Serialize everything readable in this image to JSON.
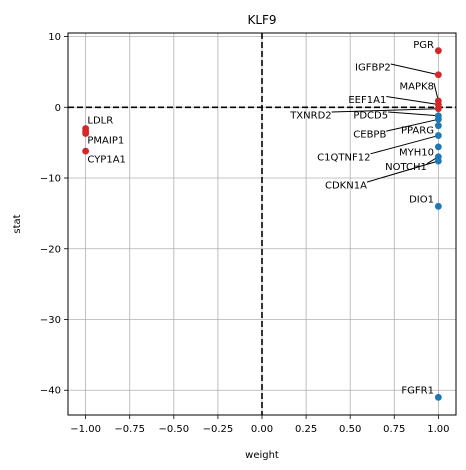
{
  "chart_data": {
    "type": "scatter",
    "title": "KLF9",
    "xlabel": "weight",
    "ylabel": "stat",
    "xlim": [
      -1.1,
      1.1
    ],
    "ylim": [
      -43.5,
      10.5
    ],
    "xticks": [
      -1.0,
      -0.75,
      -0.5,
      -0.25,
      0.0,
      0.25,
      0.5,
      0.75,
      1.0
    ],
    "xtick_labels": [
      "−1.00",
      "−0.75",
      "−0.50",
      "−0.25",
      "0.00",
      "0.25",
      "0.50",
      "0.75",
      "1.00"
    ],
    "yticks": [
      10,
      0,
      -10,
      -20,
      -30,
      -40
    ],
    "ytick_labels": [
      "10",
      "0",
      "−10",
      "−20",
      "−30",
      "−40"
    ],
    "grid": true,
    "reference_lines": {
      "x": 0,
      "y": 0,
      "style": "dashed"
    },
    "colors": {
      "positive": "#d62728",
      "negative": "#1f77b4",
      "grid": "#b0b0b0"
    },
    "points": [
      {
        "x": -1.0,
        "y": -3.0,
        "color": "positive"
      },
      {
        "x": -1.0,
        "y": -3.4,
        "color": "positive"
      },
      {
        "x": -1.0,
        "y": -3.7,
        "color": "positive"
      },
      {
        "x": -1.0,
        "y": -6.2,
        "color": "positive"
      },
      {
        "x": 1.0,
        "y": 8.0,
        "color": "positive"
      },
      {
        "x": 1.0,
        "y": 4.6,
        "color": "positive"
      },
      {
        "x": 1.0,
        "y": 0.9,
        "color": "positive"
      },
      {
        "x": 1.0,
        "y": 0.4,
        "color": "positive"
      },
      {
        "x": 1.0,
        "y": -0.2,
        "color": "positive"
      },
      {
        "x": 1.0,
        "y": -1.2,
        "color": "negative"
      },
      {
        "x": 1.0,
        "y": -1.7,
        "color": "negative"
      },
      {
        "x": 1.0,
        "y": -2.6,
        "color": "negative"
      },
      {
        "x": 1.0,
        "y": -4.0,
        "color": "negative"
      },
      {
        "x": 1.0,
        "y": -5.6,
        "color": "negative"
      },
      {
        "x": 1.0,
        "y": -7.0,
        "color": "negative"
      },
      {
        "x": 1.0,
        "y": -7.6,
        "color": "negative"
      },
      {
        "x": 1.0,
        "y": -14.0,
        "color": "negative"
      },
      {
        "x": 1.0,
        "y": -41.0,
        "color": "negative"
      }
    ],
    "labels": [
      {
        "text": "LDLR",
        "x": -1.0,
        "y": -3.0,
        "tx": -0.99,
        "ty": -1.8,
        "anchor": "start",
        "leader": false
      },
      {
        "text": "PMAIP1",
        "x": -1.0,
        "y": -3.5,
        "tx": -0.99,
        "ty": -4.6,
        "anchor": "start",
        "leader": false
      },
      {
        "text": "CYP1A1",
        "x": -1.0,
        "y": -6.2,
        "tx": -0.99,
        "ty": -7.3,
        "anchor": "start",
        "leader": false
      },
      {
        "text": "PGR",
        "x": 1.0,
        "y": 8.0,
        "tx": 0.975,
        "ty": 8.9,
        "anchor": "end",
        "leader": false
      },
      {
        "text": "IGFBP2",
        "x": 1.0,
        "y": 4.6,
        "tx": 0.73,
        "ty": 5.7,
        "anchor": "end",
        "leader": true
      },
      {
        "text": "MAPK8",
        "x": 1.0,
        "y": 0.9,
        "tx": 0.975,
        "ty": 3.0,
        "anchor": "end",
        "leader": true
      },
      {
        "text": "EEF1A1",
        "x": 1.0,
        "y": 0.4,
        "tx": 0.705,
        "ty": 1.1,
        "anchor": "end",
        "leader": true
      },
      {
        "text": "TXNRD2",
        "x": 1.0,
        "y": -0.2,
        "tx": 0.395,
        "ty": -1.1,
        "anchor": "end",
        "leader": true
      },
      {
        "text": "PDCD5",
        "x": 1.0,
        "y": -1.2,
        "tx": 0.715,
        "ty": -1.1,
        "anchor": "end",
        "leader": true
      },
      {
        "text": "PPARG",
        "x": 1.0,
        "y": -2.6,
        "tx": 0.975,
        "ty": -3.2,
        "anchor": "end",
        "leader": false
      },
      {
        "text": "CEBPB",
        "x": 1.0,
        "y": -1.7,
        "tx": 0.705,
        "ty": -3.8,
        "anchor": "end",
        "leader": true
      },
      {
        "text": "MYH10",
        "x": 1.0,
        "y": -5.6,
        "tx": 0.975,
        "ty": -6.3,
        "anchor": "end",
        "leader": false
      },
      {
        "text": "C1QTNF12",
        "x": 1.0,
        "y": -4.0,
        "tx": 0.615,
        "ty": -7.0,
        "anchor": "end",
        "leader": true
      },
      {
        "text": "NOTCH1",
        "x": 1.0,
        "y": -7.0,
        "tx": 0.935,
        "ty": -8.4,
        "anchor": "end",
        "leader": true
      },
      {
        "text": "CDKN1A",
        "x": 1.0,
        "y": -7.6,
        "tx": 0.595,
        "ty": -11.0,
        "anchor": "end",
        "leader": true
      },
      {
        "text": "DIO1",
        "x": 1.0,
        "y": -14.0,
        "tx": 0.975,
        "ty": -13.0,
        "anchor": "end",
        "leader": false
      },
      {
        "text": "FGFR1",
        "x": 1.0,
        "y": -41.0,
        "tx": 0.975,
        "ty": -40.0,
        "anchor": "end",
        "leader": false
      }
    ]
  }
}
